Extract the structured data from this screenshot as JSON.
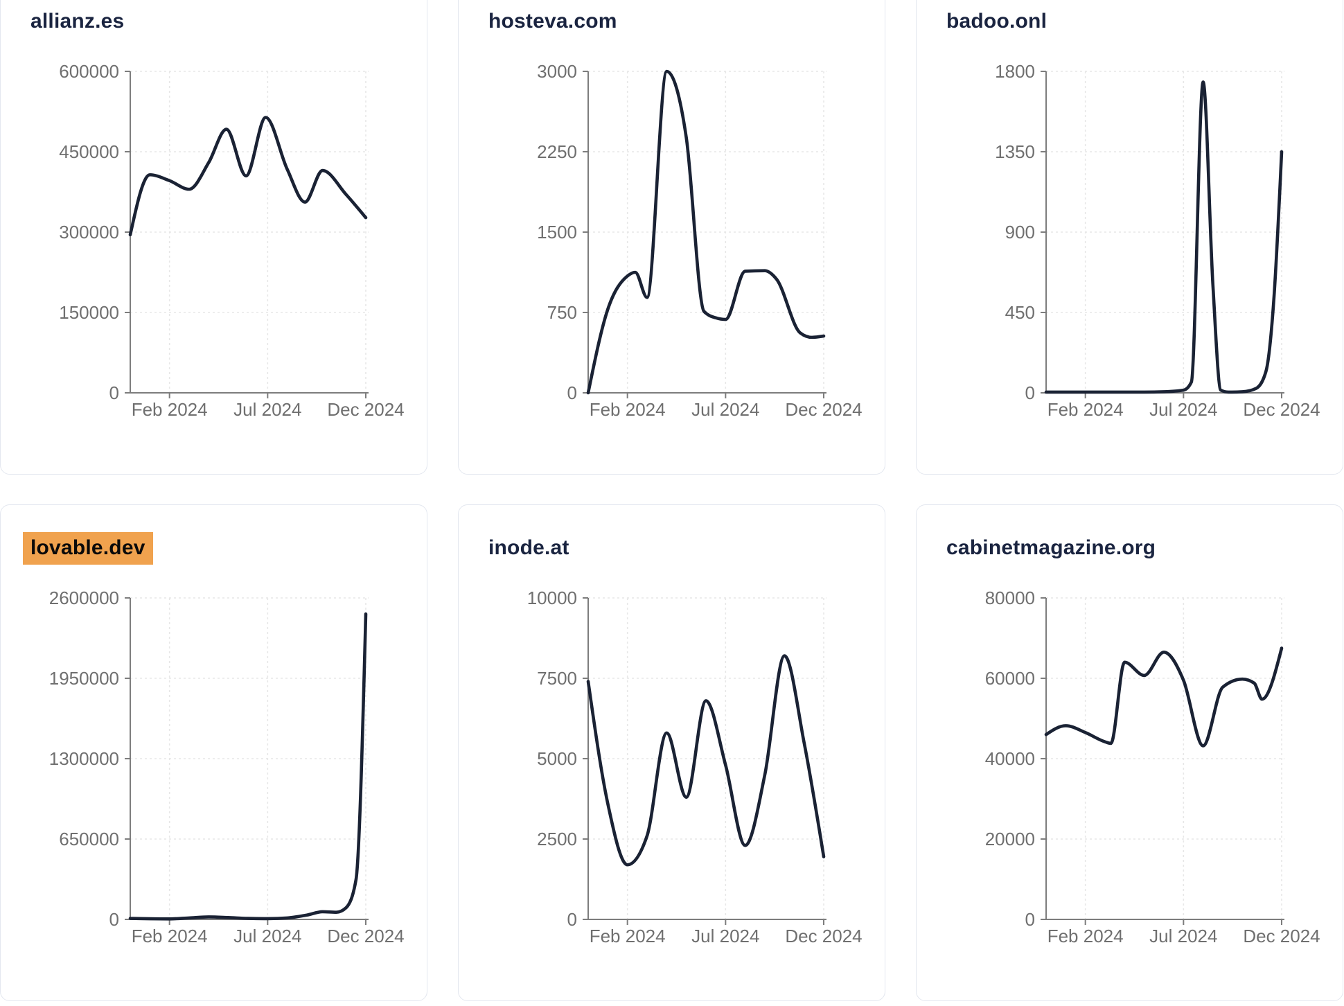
{
  "page": {
    "background": "#ffffff",
    "card_border_color": "#e3e7ef",
    "line_color": "#1a2234",
    "title_color": "#1a2440",
    "highlight_color": "#f0a24e",
    "highlight_text_color": "#0a0a0a",
    "tick_label_color": "#6f6f6f",
    "axis_color": "#7d7d7d",
    "grid_color": "#e7e7e7"
  },
  "chart_data": [
    {
      "type": "line",
      "title": "allianz.es",
      "highlighted": false,
      "ylim": [
        0,
        600000
      ],
      "y_max": 600000,
      "y_ticks": [
        0,
        150000,
        300000,
        450000,
        600000
      ],
      "x_ticks": [
        {
          "label": "Feb 2024",
          "month": 2
        },
        {
          "label": "Jul 2024",
          "month": 7
        },
        {
          "label": "Dec 2024",
          "month": 12
        }
      ],
      "x_note": "month index: 0 = left edge (Dec 2023), 12 = Dec 2024",
      "points": [
        [
          0,
          295000
        ],
        [
          1,
          407000
        ],
        [
          2,
          396000
        ],
        [
          3,
          380000
        ],
        [
          4,
          430000
        ],
        [
          4.9,
          492000
        ],
        [
          5.9,
          405000
        ],
        [
          6.9,
          514000
        ],
        [
          8,
          417000
        ],
        [
          8.9,
          356000
        ],
        [
          9.8,
          415000
        ],
        [
          11,
          370000
        ],
        [
          12,
          327000
        ]
      ]
    },
    {
      "type": "line",
      "title": "hosteva.com",
      "highlighted": false,
      "ylim": [
        0,
        3000
      ],
      "y_max": 3000,
      "y_ticks": [
        0,
        750,
        1500,
        2250,
        3000
      ],
      "x_ticks": [
        {
          "label": "Feb 2024",
          "month": 2
        },
        {
          "label": "Jul 2024",
          "month": 7
        },
        {
          "label": "Dec 2024",
          "month": 12
        }
      ],
      "x_note": "month index: 0 = left edge (Dec 2023), 12 = Dec 2024",
      "points": [
        [
          0,
          0
        ],
        [
          1,
          780
        ],
        [
          2,
          1090
        ],
        [
          2.4,
          1125
        ],
        [
          3,
          890
        ],
        [
          4,
          3000
        ],
        [
          5,
          2380
        ],
        [
          5.9,
          760
        ],
        [
          6.5,
          700
        ],
        [
          7,
          685
        ],
        [
          8,
          1135
        ],
        [
          9,
          1140
        ],
        [
          9.6,
          1060
        ],
        [
          10.8,
          560
        ],
        [
          11.4,
          518
        ],
        [
          12,
          530
        ]
      ]
    },
    {
      "type": "line",
      "title": "badoo.onl",
      "highlighted": false,
      "ylim": [
        0,
        1800
      ],
      "y_max": 1800,
      "y_ticks": [
        0,
        450,
        900,
        1350,
        1800
      ],
      "x_ticks": [
        {
          "label": "Feb 2024",
          "month": 2
        },
        {
          "label": "Jul 2024",
          "month": 7
        },
        {
          "label": "Dec 2024",
          "month": 12
        }
      ],
      "x_note": "month index: 0 = left edge (Dec 2023), 12 = Dec 2024",
      "points": [
        [
          0,
          4
        ],
        [
          1,
          4
        ],
        [
          2,
          4
        ],
        [
          3,
          4
        ],
        [
          4,
          4
        ],
        [
          5,
          4
        ],
        [
          6,
          6
        ],
        [
          7,
          15
        ],
        [
          7.4,
          60
        ],
        [
          8,
          1740
        ],
        [
          8.5,
          600
        ],
        [
          8.9,
          15
        ],
        [
          9.3,
          4
        ],
        [
          10,
          6
        ],
        [
          10.7,
          25
        ],
        [
          11.2,
          120
        ],
        [
          11.6,
          520
        ],
        [
          12,
          1350
        ]
      ]
    },
    {
      "type": "line",
      "title": "lovable.dev",
      "highlighted": true,
      "ylim": [
        0,
        2600000
      ],
      "y_max": 2600000,
      "y_ticks": [
        0,
        650000,
        1300000,
        1950000,
        2600000
      ],
      "x_ticks": [
        {
          "label": "Feb 2024",
          "month": 2
        },
        {
          "label": "Jul 2024",
          "month": 7
        },
        {
          "label": "Dec 2024",
          "month": 12
        }
      ],
      "x_note": "month index: 0 = left edge (Dec 2023), 12 = Dec 2024",
      "points": [
        [
          0,
          8000
        ],
        [
          1,
          5000
        ],
        [
          2,
          4000
        ],
        [
          3,
          12000
        ],
        [
          4,
          20000
        ],
        [
          5,
          15000
        ],
        [
          6,
          8000
        ],
        [
          7,
          6000
        ],
        [
          8,
          12000
        ],
        [
          9,
          35000
        ],
        [
          9.8,
          62000
        ],
        [
          10.5,
          58000
        ],
        [
          11,
          95000
        ],
        [
          11.5,
          320000
        ],
        [
          12,
          2470000
        ]
      ]
    },
    {
      "type": "line",
      "title": "inode.at",
      "highlighted": false,
      "ylim": [
        0,
        10000
      ],
      "y_max": 10000,
      "y_ticks": [
        0,
        2500,
        5000,
        7500,
        10000
      ],
      "x_ticks": [
        {
          "label": "Feb 2024",
          "month": 2
        },
        {
          "label": "Jul 2024",
          "month": 7
        },
        {
          "label": "Dec 2024",
          "month": 12
        }
      ],
      "x_note": "month index: 0 = left edge (Dec 2023), 12 = Dec 2024",
      "points": [
        [
          0,
          7400
        ],
        [
          1,
          3600
        ],
        [
          2,
          1700
        ],
        [
          3,
          2600
        ],
        [
          4,
          5800
        ],
        [
          5,
          3800
        ],
        [
          6,
          6800
        ],
        [
          7,
          4800
        ],
        [
          8,
          2300
        ],
        [
          9,
          4500
        ],
        [
          10,
          8200
        ],
        [
          11,
          5500
        ],
        [
          12,
          1950
        ]
      ]
    },
    {
      "type": "line",
      "title": "cabinetmagazine.org",
      "highlighted": false,
      "ylim": [
        0,
        80000
      ],
      "y_max": 80000,
      "y_ticks": [
        0,
        20000,
        40000,
        60000,
        80000
      ],
      "x_ticks": [
        {
          "label": "Feb 2024",
          "month": 2
        },
        {
          "label": "Jul 2024",
          "month": 7
        },
        {
          "label": "Dec 2024",
          "month": 12
        }
      ],
      "x_note": "month index: 0 = left edge (Dec 2023), 12 = Dec 2024",
      "points": [
        [
          0,
          46000
        ],
        [
          1,
          48200
        ],
        [
          2,
          46500
        ],
        [
          3,
          44200
        ],
        [
          3.3,
          43800
        ],
        [
          4,
          64000
        ],
        [
          5,
          60700
        ],
        [
          6,
          66500
        ],
        [
          7,
          59500
        ],
        [
          8,
          43200
        ],
        [
          9,
          57800
        ],
        [
          10,
          59800
        ],
        [
          10.6,
          58800
        ],
        [
          11,
          54800
        ],
        [
          12,
          67500
        ]
      ]
    }
  ]
}
